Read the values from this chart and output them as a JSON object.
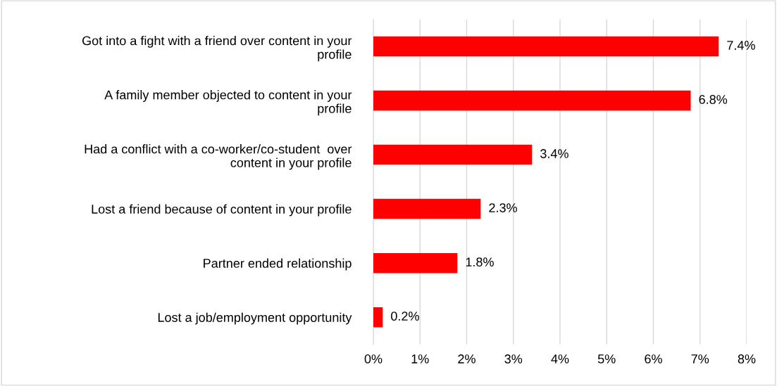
{
  "chart_data": {
    "type": "bar",
    "orientation": "horizontal",
    "categories": [
      "Got into a fight with a friend over content in your\nprofile",
      "A family member objected to content in your\nprofile",
      "Had a conflict with a co-worker/co-student  over\ncontent in your profile",
      "Lost a friend because of content in your profile",
      "Partner ended relationship",
      "Lost a job/employment opportunity"
    ],
    "values": [
      7.4,
      6.8,
      3.4,
      2.3,
      1.8,
      0.2
    ],
    "value_labels": [
      "7.4%",
      "6.8%",
      "3.4%",
      "2.3%",
      "1.8%",
      "0.2%"
    ],
    "color": "#ff0000",
    "xlim": [
      0,
      8
    ],
    "xticks": [
      {
        "value": 0,
        "label": "0%"
      },
      {
        "value": 1,
        "label": "1%"
      },
      {
        "value": 2,
        "label": "2%"
      },
      {
        "value": 3,
        "label": "3%"
      },
      {
        "value": 4,
        "label": "4%"
      },
      {
        "value": 5,
        "label": "5%"
      },
      {
        "value": 6,
        "label": "6%"
      },
      {
        "value": 7,
        "label": "7%"
      },
      {
        "value": 8,
        "label": "8%"
      }
    ],
    "grid": "x"
  }
}
